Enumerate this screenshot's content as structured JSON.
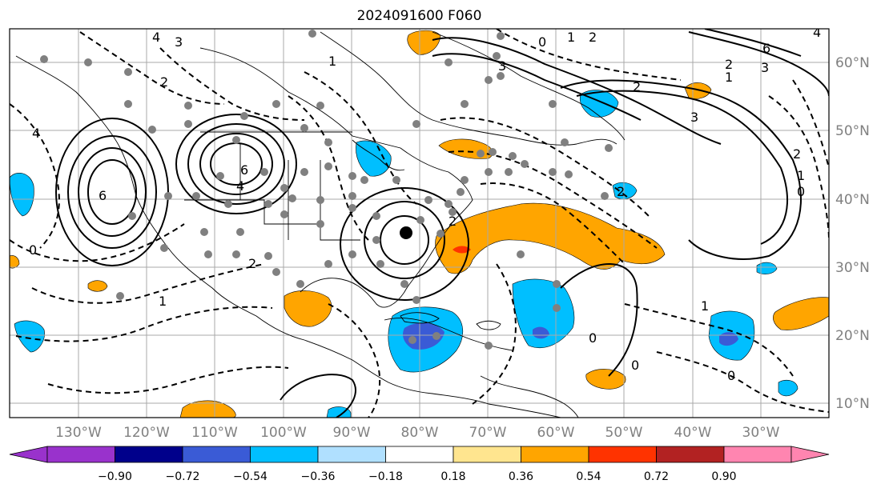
{
  "title": "2024091600 F060",
  "map": {
    "lon_labels": [
      "130°W",
      "120°W",
      "110°W",
      "100°W",
      "90°W",
      "80°W",
      "70°W",
      "60°W",
      "50°W",
      "40°W",
      "30°W"
    ],
    "lat_labels": [
      "60°N",
      "50°N",
      "40°N",
      "30°N",
      "20°N",
      "10°N"
    ],
    "contour_labels": [
      "4",
      "3",
      "2",
      "1",
      "0",
      "2",
      "6",
      "4",
      "6",
      "4",
      "3",
      "2",
      "0",
      "1",
      "2",
      "3",
      "4",
      "6",
      "2",
      "1",
      "0",
      "1",
      "2",
      "0",
      "0",
      "0",
      "1",
      "2",
      "3",
      "1",
      "2"
    ]
  },
  "colorbar": {
    "ticks": [
      "−0.90",
      "−0.72",
      "−0.54",
      "−0.36",
      "−0.18",
      "0.18",
      "0.36",
      "0.54",
      "0.72",
      "0.90"
    ],
    "colors": [
      "#9932cc",
      "#00008b",
      "#3a5bd6",
      "#00bfff",
      "#b0e0ff",
      "#ffffff",
      "#ffe58f",
      "#ffa500",
      "#ff3300",
      "#b22222",
      "#ff85b0"
    ]
  },
  "colors": {
    "negative_fill": "#00bfff",
    "negative_strong_fill": "#3a5bd6",
    "positive_fill": "#ffa500",
    "positive_strong_fill": "#ff3300",
    "station_dots": "#808080",
    "grid": "#a9a9a9"
  }
}
